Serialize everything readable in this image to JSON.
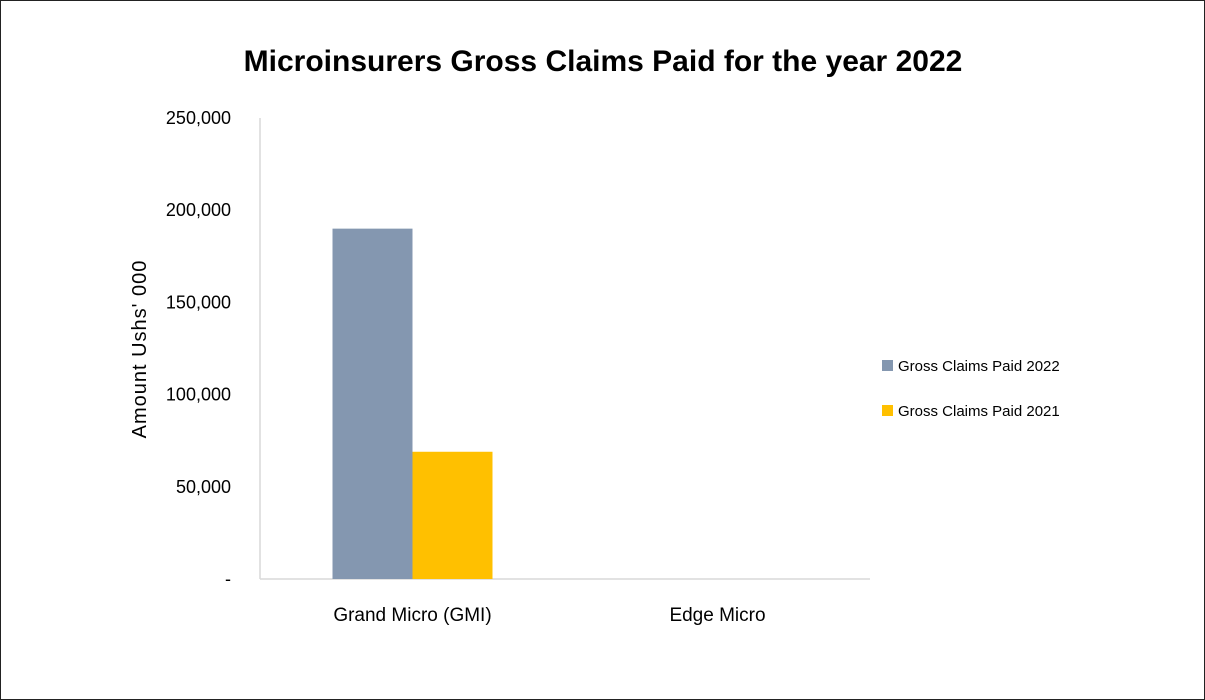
{
  "chart_data": {
    "type": "bar",
    "title": "Microinsurers Gross Claims Paid for the year 2022",
    "xlabel": "",
    "ylabel": "Amount Ushs' 000",
    "categories": [
      "Grand Micro (GMI)",
      "Edge Micro"
    ],
    "series": [
      {
        "name": "Gross Claims Paid 2022",
        "color": "#8497B0",
        "values": [
          190000,
          0
        ]
      },
      {
        "name": "Gross Claims Paid 2021",
        "color": "#FFC000",
        "values": [
          69000,
          0
        ]
      }
    ],
    "ylim": [
      0,
      250000
    ],
    "yticks": [
      0,
      50000,
      100000,
      150000,
      200000,
      250000
    ],
    "ytick_labels": [
      "-",
      "50,000",
      "100,000",
      "150,000",
      "200,000",
      "250,000"
    ],
    "grid": false,
    "legend_position": "right"
  }
}
